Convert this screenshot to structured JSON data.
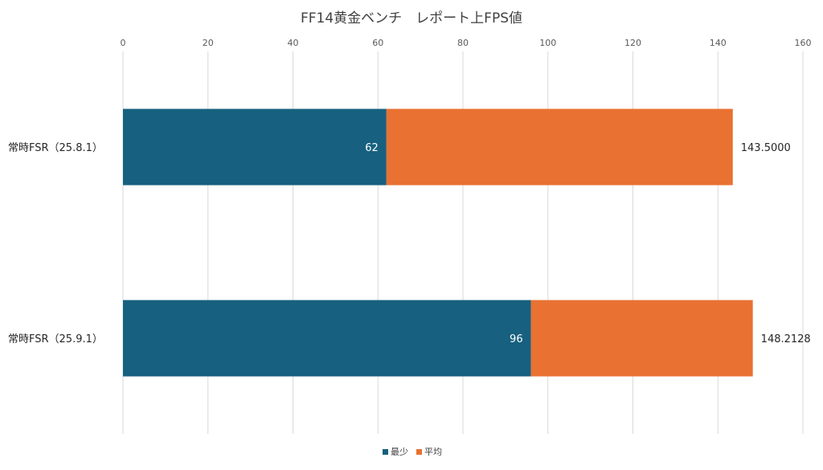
{
  "chart_data": {
    "type": "bar",
    "orientation": "horizontal",
    "stacked": true,
    "title": "FF14黄金ベンチ　レポート上FPS値",
    "categories": [
      "常時FSR（25.8.1）",
      "常時FSR（25.9.1）"
    ],
    "series": [
      {
        "name": "最少",
        "values": [
          62,
          96
        ],
        "color": "#17607F",
        "labels": [
          "62",
          "96"
        ]
      },
      {
        "name": "平均",
        "values": [
          81.5,
          52.2128
        ],
        "color": "#E97132",
        "labels": [
          "143.5000",
          "148.2128"
        ]
      }
    ],
    "xlim": [
      0,
      160
    ],
    "xticks": [
      0,
      20,
      40,
      60,
      80,
      100,
      120,
      140,
      160
    ],
    "xaxis_position": "top",
    "grid": "vertical",
    "legend_position": "bottom"
  }
}
